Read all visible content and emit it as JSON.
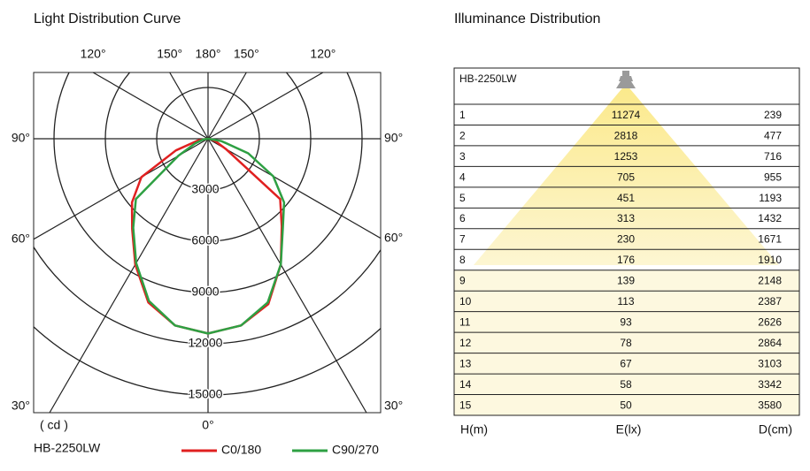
{
  "chart_data": {
    "type": "polar",
    "title": "Light Distribution Curve",
    "model": "HB-2250LW",
    "unit_label": "( cd )",
    "angles": [
      -90,
      -80,
      -70,
      -60,
      -50,
      -40,
      -30,
      -20,
      -10,
      0,
      10,
      20,
      30,
      40,
      50,
      60,
      70,
      80,
      90
    ],
    "series": [
      {
        "name": "C0/180",
        "color": "#e02020",
        "values": [
          0,
          600,
          2000,
          4500,
          5800,
          6900,
          8500,
          10200,
          11100,
          11400,
          11100,
          10300,
          8500,
          6700,
          5500,
          1200,
          500,
          200,
          0
        ]
      },
      {
        "name": "C90/270",
        "color": "#2ea043",
        "values": [
          0,
          300,
          800,
          2000,
          5500,
          6800,
          8400,
          10100,
          11100,
          11400,
          11100,
          10200,
          8500,
          6800,
          5800,
          4400,
          2500,
          800,
          0
        ]
      }
    ],
    "rlim": [
      0,
      15000
    ],
    "rticks": [
      3000,
      6000,
      9000,
      12000,
      15000
    ],
    "angle_ticks": [
      {
        "value": -120,
        "label": "120°"
      },
      {
        "value": -150,
        "label": "150°"
      },
      {
        "value": 180,
        "label": "180°"
      },
      {
        "value": 150,
        "label": "150°"
      },
      {
        "value": 120,
        "label": "120°"
      },
      {
        "value": -90,
        "label": "90°"
      },
      {
        "value": 90,
        "label": "90°"
      },
      {
        "value": -60,
        "label": "60°"
      },
      {
        "value": 60,
        "label": "60°"
      },
      {
        "value": -30,
        "label": "30°"
      },
      {
        "value": 30,
        "label": "30°"
      },
      {
        "value": 0,
        "label": "0°"
      }
    ]
  },
  "table": {
    "title": "Illuminance Distribution",
    "model": "HB-2250LW",
    "columns": [
      "H(m)",
      "E(lx)",
      "D(cm)"
    ],
    "rows": [
      [
        1,
        11274,
        239
      ],
      [
        2,
        2818,
        477
      ],
      [
        3,
        1253,
        716
      ],
      [
        4,
        705,
        955
      ],
      [
        5,
        451,
        1193
      ],
      [
        6,
        313,
        1432
      ],
      [
        7,
        230,
        1671
      ],
      [
        8,
        176,
        1910
      ],
      [
        9,
        139,
        2148
      ],
      [
        10,
        113,
        2387
      ],
      [
        11,
        93,
        2626
      ],
      [
        12,
        78,
        2864
      ],
      [
        13,
        67,
        3103
      ],
      [
        14,
        58,
        3342
      ],
      [
        15,
        50,
        3580
      ]
    ]
  }
}
